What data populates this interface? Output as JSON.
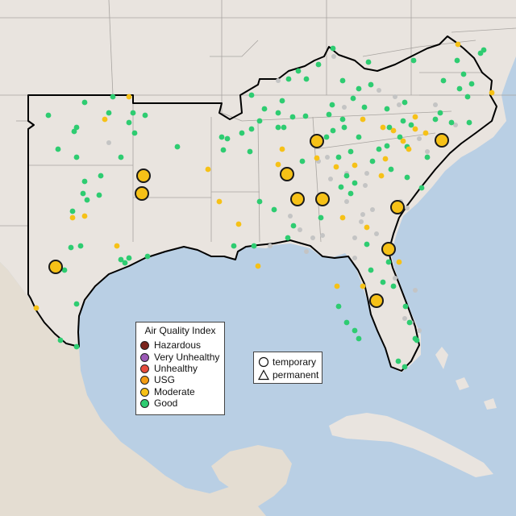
{
  "colors": {
    "ocean": "#b9cfe4",
    "land": "#e9e4df",
    "region_outline": "#000000",
    "state_lines": "#a8a4a0",
    "good": "#2ecc71",
    "moderate": "#f6c117",
    "usg": "#f39c12",
    "unhealthy": "#e74c3c",
    "very_unhealthy": "#9b59b6",
    "hazardous": "#7b241c",
    "no_data": "#c4c4c4"
  },
  "legend": {
    "title": "Air Quality Index",
    "items": [
      {
        "label": "Hazardous",
        "color": "#7b241c"
      },
      {
        "label": "Very Unhealthy",
        "color": "#9b59b6"
      },
      {
        "label": "Unhealthy",
        "color": "#e74c3c"
      },
      {
        "label": "USG",
        "color": "#f39c12"
      },
      {
        "label": "Moderate",
        "color": "#f6c117"
      },
      {
        "label": "Good",
        "color": "#2ecc71"
      }
    ]
  },
  "monitor_type_legend": {
    "temporary_label": "temporary",
    "permanent_label": "permanent"
  }
}
